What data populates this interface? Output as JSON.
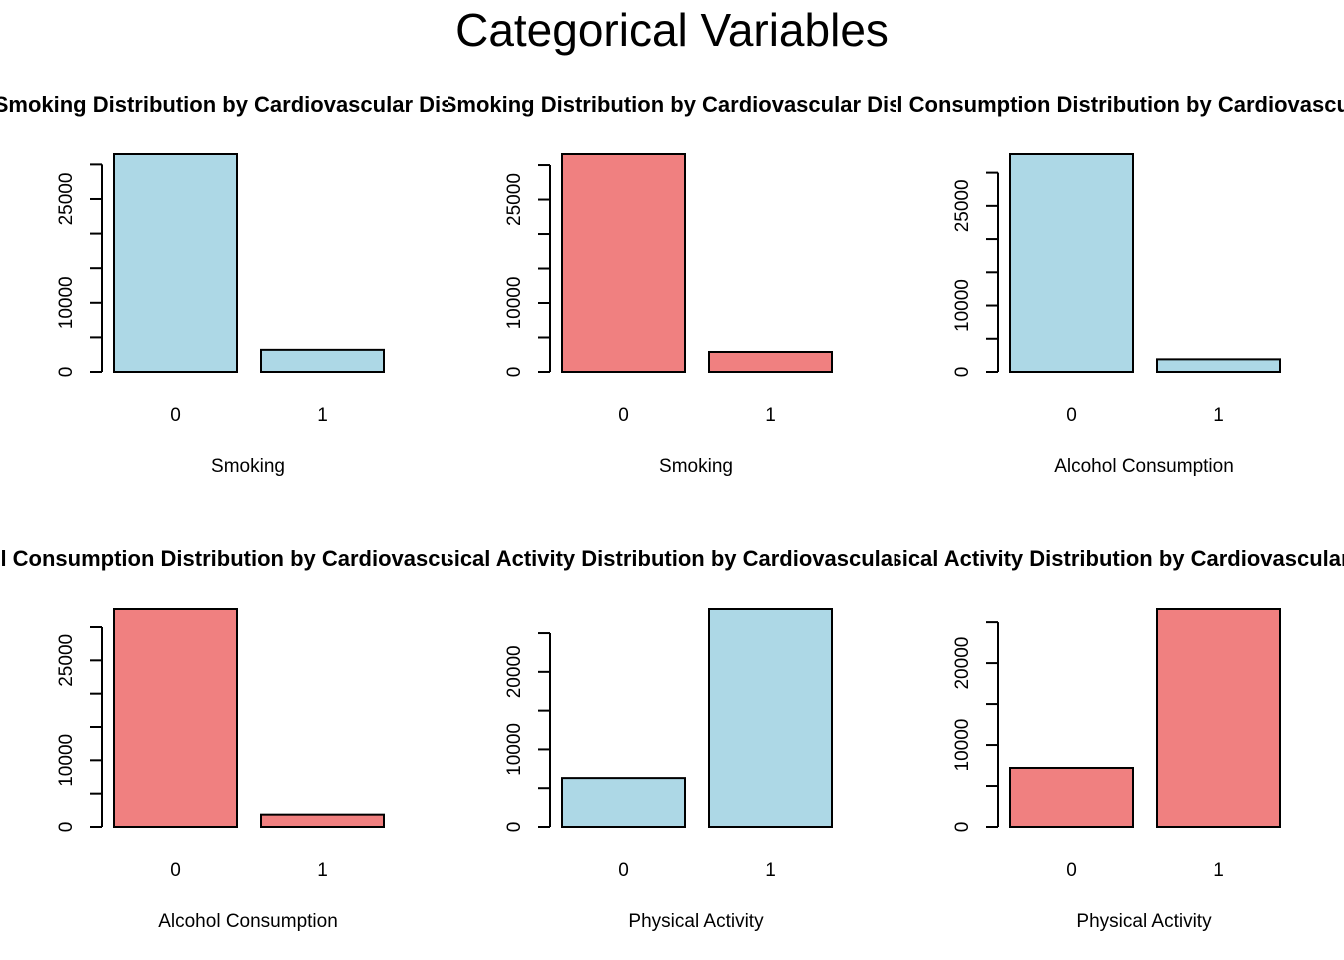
{
  "figure": {
    "title": "Categorical Variables"
  },
  "colors": {
    "light_blue": "#add8e6",
    "light_coral": "#f08080"
  },
  "chart_data": [
    {
      "type": "bar",
      "title": "Smoking Distribution by Cardiovascular Disease",
      "xlabel": "Smoking",
      "ylabel": "",
      "categories": [
        "0",
        "1"
      ],
      "values": [
        31500,
        3200
      ],
      "ylim": [
        0,
        31500
      ],
      "yticks": [
        0,
        5000,
        10000,
        15000,
        20000,
        25000,
        30000
      ],
      "ytick_labels": [
        "0",
        "",
        "10000",
        "",
        "",
        "25000",
        ""
      ],
      "color": "#add8e6",
      "grid": false
    },
    {
      "type": "bar",
      "title": "Smoking Distribution by Cardiovascular Disease",
      "xlabel": "Smoking",
      "ylabel": "",
      "categories": [
        "0",
        "1"
      ],
      "values": [
        31600,
        2900
      ],
      "ylim": [
        0,
        31600
      ],
      "yticks": [
        0,
        5000,
        10000,
        15000,
        20000,
        25000,
        30000
      ],
      "ytick_labels": [
        "0",
        "",
        "10000",
        "",
        "",
        "25000",
        ""
      ],
      "color": "#f08080",
      "grid": false
    },
    {
      "type": "bar",
      "title": "Alcohol Consumption Distribution by Cardiovascular Disease",
      "xlabel": "Alcohol Consumption",
      "ylabel": "",
      "categories": [
        "0",
        "1"
      ],
      "values": [
        32800,
        1900
      ],
      "ylim": [
        0,
        32800
      ],
      "yticks": [
        0,
        5000,
        10000,
        15000,
        20000,
        25000,
        30000
      ],
      "ytick_labels": [
        "0",
        "",
        "10000",
        "",
        "",
        "25000",
        ""
      ],
      "color": "#add8e6",
      "grid": false
    },
    {
      "type": "bar",
      "title": "Alcohol Consumption Distribution by Cardiovascular Disease",
      "xlabel": "Alcohol Consumption",
      "ylabel": "",
      "categories": [
        "0",
        "1"
      ],
      "values": [
        32700,
        1850
      ],
      "ylim": [
        0,
        32700
      ],
      "yticks": [
        0,
        5000,
        10000,
        15000,
        20000,
        25000,
        30000
      ],
      "ytick_labels": [
        "0",
        "",
        "10000",
        "",
        "",
        "25000",
        ""
      ],
      "color": "#f08080",
      "grid": false
    },
    {
      "type": "bar",
      "title": "Physical Activity Distribution by Cardiovascular Disease",
      "xlabel": "Physical Activity",
      "ylabel": "",
      "categories": [
        "0",
        "1"
      ],
      "values": [
        6300,
        28100
      ],
      "ylim": [
        0,
        28100
      ],
      "yticks": [
        0,
        5000,
        10000,
        15000,
        20000,
        25000
      ],
      "ytick_labels": [
        "0",
        "",
        "10000",
        "",
        "20000",
        ""
      ],
      "color": "#add8e6",
      "grid": false
    },
    {
      "type": "bar",
      "title": "Physical Activity Distribution by Cardiovascular Disease",
      "xlabel": "Physical Activity",
      "ylabel": "",
      "categories": [
        "0",
        "1"
      ],
      "values": [
        7200,
        26600
      ],
      "ylim": [
        0,
        26600
      ],
      "yticks": [
        0,
        5000,
        10000,
        15000,
        20000,
        25000
      ],
      "ytick_labels": [
        "0",
        "",
        "10000",
        "",
        "20000",
        ""
      ],
      "color": "#f08080",
      "grid": false
    }
  ]
}
